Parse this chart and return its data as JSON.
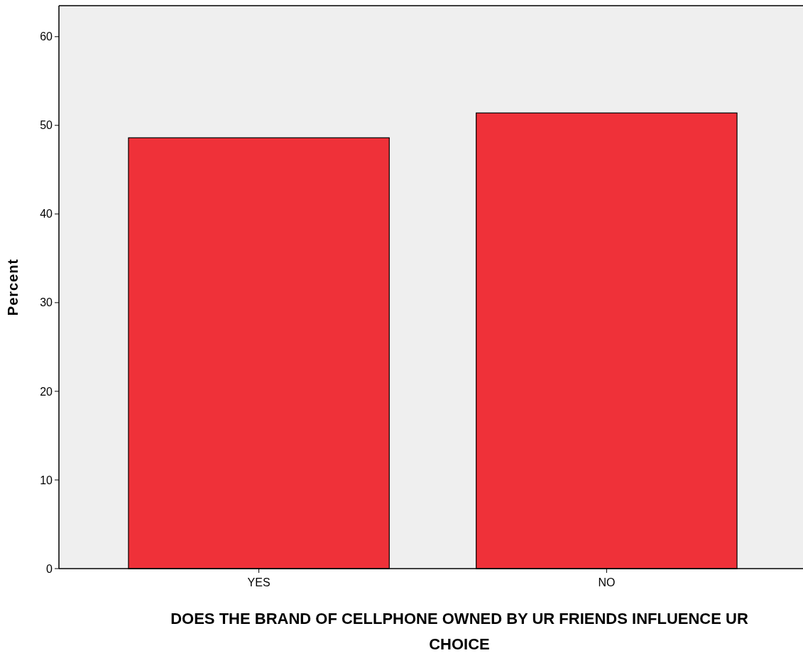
{
  "chart_data": {
    "type": "bar",
    "xlabel": "DOES THE BRAND OF CELLPHONE OWNED BY UR FRIENDS INFLUENCE UR CHOICE",
    "ylabel": "Percent",
    "categories": [
      "YES",
      "NO"
    ],
    "values": [
      48.6,
      51.4
    ],
    "color": "#ef3139",
    "ylim": [
      0,
      63.5
    ],
    "yticks": [
      0,
      10,
      20,
      30,
      40,
      50,
      60
    ],
    "grid": false
  }
}
